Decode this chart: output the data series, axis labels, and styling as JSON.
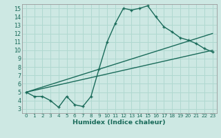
{
  "title": "",
  "xlabel": "Humidex (Indice chaleur)",
  "bg_color": "#cde8e3",
  "grid_color": "#b0d8d0",
  "line_color": "#1a6b5a",
  "xlim": [
    -0.5,
    23.5
  ],
  "ylim": [
    2.5,
    15.5
  ],
  "xticks": [
    0,
    1,
    2,
    3,
    4,
    5,
    6,
    7,
    8,
    9,
    10,
    11,
    12,
    13,
    14,
    15,
    16,
    17,
    18,
    19,
    20,
    21,
    22,
    23
  ],
  "yticks": [
    3,
    4,
    5,
    6,
    7,
    8,
    9,
    10,
    11,
    12,
    13,
    14,
    15
  ],
  "main_curve_x": [
    0,
    1,
    2,
    3,
    4,
    5,
    6,
    7,
    8,
    9,
    10,
    11,
    12,
    13,
    14,
    15,
    16,
    17,
    18,
    19,
    20,
    21,
    22,
    23
  ],
  "main_curve_y": [
    5.0,
    4.5,
    4.5,
    4.0,
    3.2,
    4.5,
    3.5,
    3.3,
    4.5,
    7.8,
    11.0,
    13.2,
    15.0,
    14.8,
    15.0,
    15.3,
    14.0,
    12.8,
    12.2,
    11.5,
    11.2,
    10.8,
    10.2,
    9.8
  ],
  "line1_x": [
    0,
    23
  ],
  "line1_y": [
    5.0,
    10.0
  ],
  "line2_x": [
    0,
    23
  ],
  "line2_y": [
    5.0,
    12.0
  ]
}
